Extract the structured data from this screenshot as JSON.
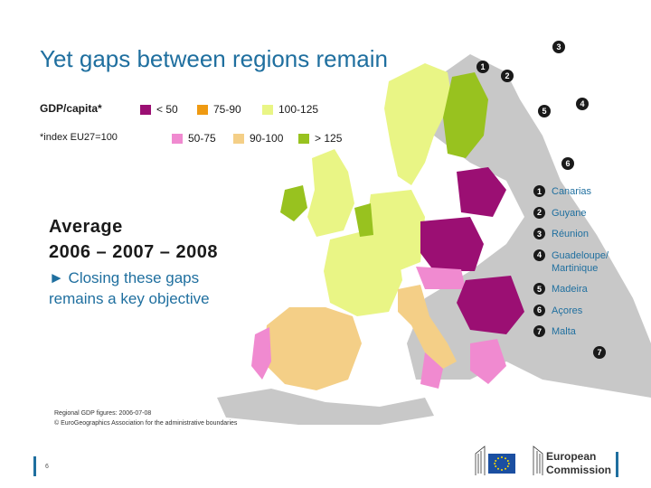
{
  "title": "Yet gaps between regions remain",
  "legend": {
    "heading": "GDP/capita*",
    "note": "*index EU27=100",
    "classes": [
      {
        "label": "< 50",
        "color": "#9b0f73"
      },
      {
        "label": "75-90",
        "color": "#ef9a12"
      },
      {
        "label": "100-125",
        "color": "#e9f585"
      },
      {
        "label": "50-75",
        "color": "#f08ad0"
      },
      {
        "label": "90-100",
        "color": "#f4cf87"
      },
      {
        "label": "> 125",
        "color": "#98c21f"
      }
    ]
  },
  "average": {
    "line1": "Average",
    "line2": "2006 – 2007 – 2008"
  },
  "message": "► Closing these gaps remains a key objective",
  "outermost_regions": [
    {
      "number": "1",
      "label": "Canarias"
    },
    {
      "number": "2",
      "label": "Guyane"
    },
    {
      "number": "3",
      "label": "Réunion"
    },
    {
      "number": "4",
      "label": "Guadeloupe/ Martinique"
    },
    {
      "number": "5",
      "label": "Madeira"
    },
    {
      "number": "6",
      "label": "Açores"
    },
    {
      "number": "7",
      "label": "Malta"
    }
  ],
  "source": {
    "line1": "Regional GDP figures: 2006-07-08",
    "line2": "© EuroGeographics Association for the administrative boundaries"
  },
  "page_number": "6",
  "logo": {
    "line1": "European",
    "line2": "Commission"
  }
}
